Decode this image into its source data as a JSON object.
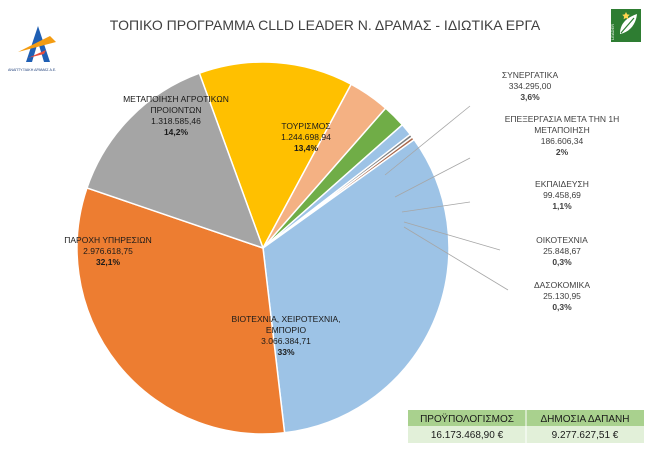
{
  "header": {
    "title": "ΤΟΠΙΚΟ ΠΡΟΓΡΑΜΜΑ CLLD LEADER Ν. ΔΡΑΜΑΣ - ΙΔΙΩΤΙΚΑ ΕΡΓΑ",
    "left_logo_text": "ΑΝΑΠΤΥΞΙΑΚΗ ΔΡΑΜΑΣ Α.Ε.",
    "right_logo_text": "LEADER",
    "left_logo_icon": "arrow-a-logo-icon",
    "right_logo_icon": "leader-leaf-logo-icon"
  },
  "chart_data": {
    "type": "pie",
    "title": "ΤΟΠΙΚΟ ΠΡΟΓΡΑΜΜΑ CLLD LEADER Ν. ΔΡΑΜΑΣ - ΙΔΙΩΤΙΚΑ ΕΡΓΑ",
    "slices": [
      {
        "label_lines": [
          "ΤΟΥΡΙΣΜΟΣ"
        ],
        "value": 1244698.94,
        "value_text": "1.244.698,94",
        "percent_text": "13,4%",
        "color": "#FFC000"
      },
      {
        "label_lines": [
          "ΣΥΝΕΡΓΑΤΙΚΑ"
        ],
        "value": 334295.0,
        "value_text": "334.295,00",
        "percent_text": "3,6%",
        "color": "#F4B183"
      },
      {
        "label_lines": [
          "ΕΠΕΞΕΡΓΑΣΙΑ ΜΕΤΑ ΤΗΝ 1Η",
          "ΜΕΤΑΠΟΙΗΣΗ"
        ],
        "value": 186606.34,
        "value_text": "186.606,34",
        "percent_text": "2%",
        "color": "#70AD47"
      },
      {
        "label_lines": [
          "ΕΚΠΑΙΔΕΥΣΗ"
        ],
        "value": 99458.69,
        "value_text": "99.458,69",
        "percent_text": "1,1%",
        "color": "#9DC3E6"
      },
      {
        "label_lines": [
          "ΟΙΚΟΤΕΧΝΙΑ"
        ],
        "value": 25848.67,
        "value_text": "25.848,67",
        "percent_text": "0,3%",
        "color": "#7F7F7F"
      },
      {
        "label_lines": [
          "ΔΑΣΟΚΟΜΙΚΑ"
        ],
        "value": 25130.95,
        "value_text": "25.130,95",
        "percent_text": "0,3%",
        "color": "#A9674A"
      },
      {
        "label_lines": [
          "ΒΙΟΤΕΧΝΙΑ, ΧΕΙΡΟΤΕΧΝΙΑ,",
          "ΕΜΠΟΡΙΟ"
        ],
        "value": 3066384.71,
        "value_text": "3.066.384,71",
        "percent_text": "33%",
        "color": "#9DC3E6"
      },
      {
        "label_lines": [
          "ΠΑΡΟΧΗ ΥΠΗΡΕΣΙΩΝ"
        ],
        "value": 2976618.75,
        "value_text": "2.976.618,75",
        "percent_text": "32,1%",
        "color": "#ED7D31"
      },
      {
        "label_lines": [
          "ΜΕΤΑΠΟΙΗΣΗ ΑΓΡΟΤΙΚΩΝ",
          "ΠΡΟΙΟΝΤΩΝ"
        ],
        "value": 1318585.46,
        "value_text": "1.318.585,46",
        "percent_text": "14,2%",
        "color": "#A5A5A5"
      }
    ]
  },
  "summary": {
    "budget_label": "ΠΡΟΫΠΟΛΟΓΙΣΜΟΣ",
    "budget_value": "16.173.468,90 €",
    "public_label": "ΔΗΜΟΣΙΑ ΔΑΠΑΝΗ",
    "public_value": "9.277.627,51 €",
    "header_color": "#A9D18E",
    "body_color": "#E2F0D9"
  }
}
